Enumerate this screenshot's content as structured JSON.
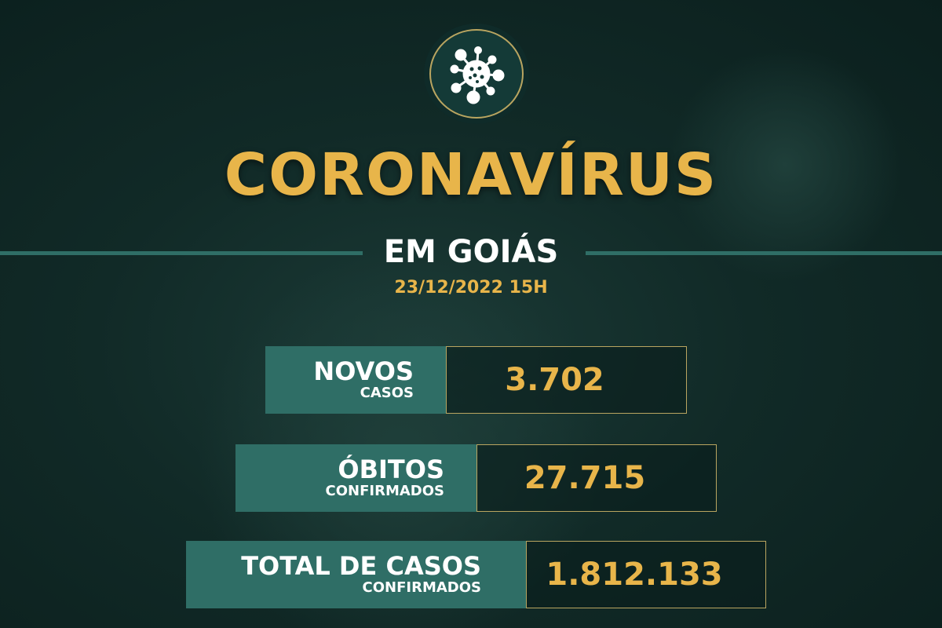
{
  "logo": {
    "icon": "coronavirus-icon"
  },
  "title": "CORONAVÍRUS",
  "subtitle": "EM GOIÁS",
  "date": "23/12/2022 15H",
  "stats": [
    {
      "label": "NOVOS",
      "sublabel": "CASOS",
      "value": "3.702"
    },
    {
      "label": "ÓBITOS",
      "sublabel": "CONFIRMADOS",
      "value": "27.715"
    },
    {
      "label": "TOTAL DE CASOS",
      "sublabel": "CONFIRMADOS",
      "value": "1.812.133"
    }
  ],
  "colors": {
    "background": "#112a27",
    "teal": "#2f6e66",
    "gold": "#e8b54a"
  }
}
